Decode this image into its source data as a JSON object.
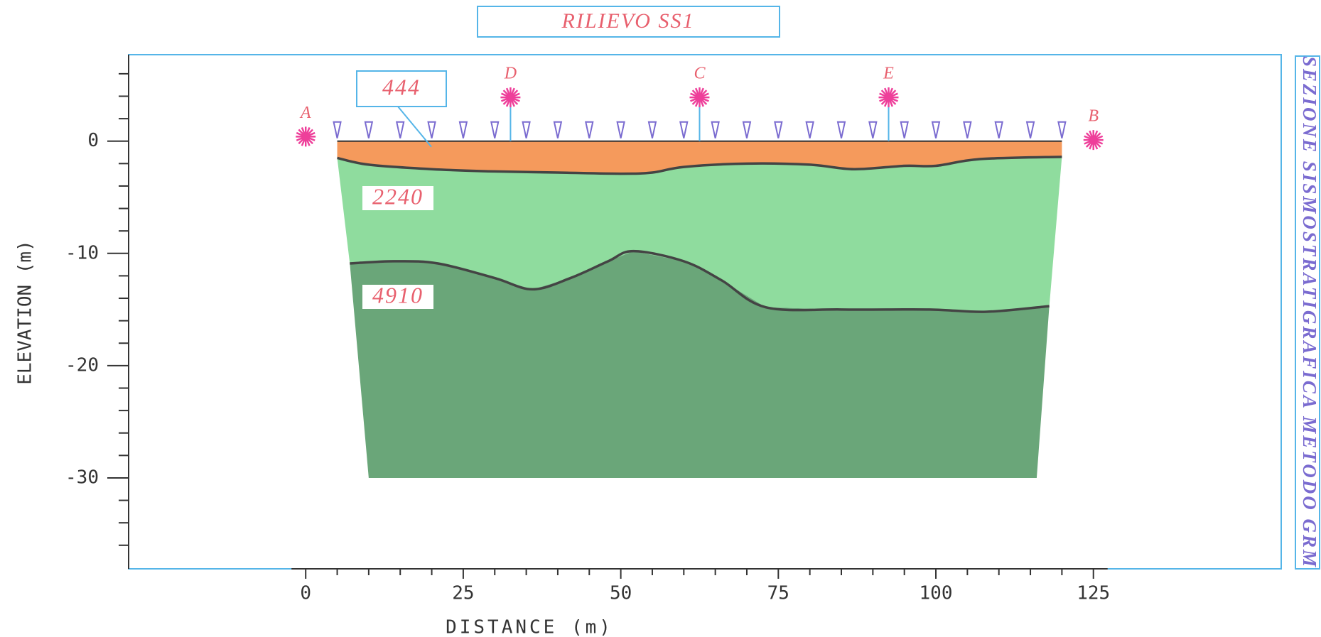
{
  "chart_data": {
    "type": "seismic-section",
    "title": "RILIEVO SS1",
    "side_title": "SEZIONE SISMOSTRATIGRAFICA METODO GRM",
    "xlabel": "DISTANCE (m)",
    "ylabel": "ELEVATION (m)",
    "xlim": [
      -28.1,
      154.8
    ],
    "ylim": [
      -38.1,
      7.7
    ],
    "xticks": [
      0,
      25,
      50,
      75,
      100,
      125
    ],
    "xminorticks": [
      5,
      10,
      15,
      20,
      30,
      35,
      40,
      45,
      55,
      60,
      65,
      70,
      80,
      85,
      90,
      95,
      105,
      110,
      115,
      120
    ],
    "yticks": [
      0,
      -10,
      -20,
      -30
    ],
    "yminorticks": [
      6,
      4,
      2,
      -2,
      -4,
      -6,
      -8,
      -12,
      -14,
      -16,
      -18,
      -22,
      -24,
      -26,
      -28,
      -32,
      -34,
      -36
    ],
    "surface": {
      "x": [
        5,
        120
      ],
      "y": [
        0,
        0
      ]
    },
    "interfaces": [
      {
        "x": [
          5,
          10,
          20,
          30,
          40,
          50,
          55,
          60,
          70,
          80,
          87,
          95,
          100,
          107,
          120
        ],
        "y": [
          -1.5,
          -2.1,
          -2.5,
          -2.7,
          -2.8,
          -2.9,
          -2.8,
          -2.3,
          -2.0,
          -2.1,
          -2.5,
          -2.2,
          -2.2,
          -1.6,
          -1.4
        ]
      },
      {
        "x": [
          7,
          14,
          21,
          30,
          36,
          42,
          48,
          52,
          60,
          66,
          73,
          85,
          99,
          108,
          118
        ],
        "y": [
          -10.9,
          -10.7,
          -10.9,
          -12.2,
          -13.2,
          -12.2,
          -10.7,
          -9.8,
          -10.7,
          -12.4,
          -14.8,
          -15.0,
          -15.0,
          -15.2,
          -14.7
        ]
      }
    ],
    "bottom": {
      "x": [
        10,
        116
      ],
      "y": [
        -30,
        -30
      ]
    },
    "layers": [
      {
        "velocity": 444,
        "color": "#f59a5c"
      },
      {
        "velocity": 2240,
        "color": "#8fdc9e"
      },
      {
        "velocity": 4910,
        "color": "#6aa679"
      }
    ],
    "geophones": {
      "x": [
        5,
        10,
        15,
        20,
        25,
        30,
        35,
        40,
        45,
        50,
        55,
        60,
        65,
        70,
        75,
        80,
        85,
        90,
        95,
        100,
        105,
        110,
        115,
        120
      ],
      "y": [
        0,
        0,
        0,
        0,
        0,
        0,
        0,
        0,
        0,
        0,
        0,
        0,
        0,
        0,
        0,
        0,
        0,
        0,
        0,
        0,
        0,
        0,
        0,
        0
      ]
    },
    "shots": {
      "names": [
        "A",
        "D",
        "C",
        "E",
        "B"
      ],
      "x": [
        0,
        32.5,
        62.5,
        92.5,
        125
      ],
      "y": [
        0.4,
        3.9,
        3.9,
        3.9,
        0.1
      ]
    }
  }
}
